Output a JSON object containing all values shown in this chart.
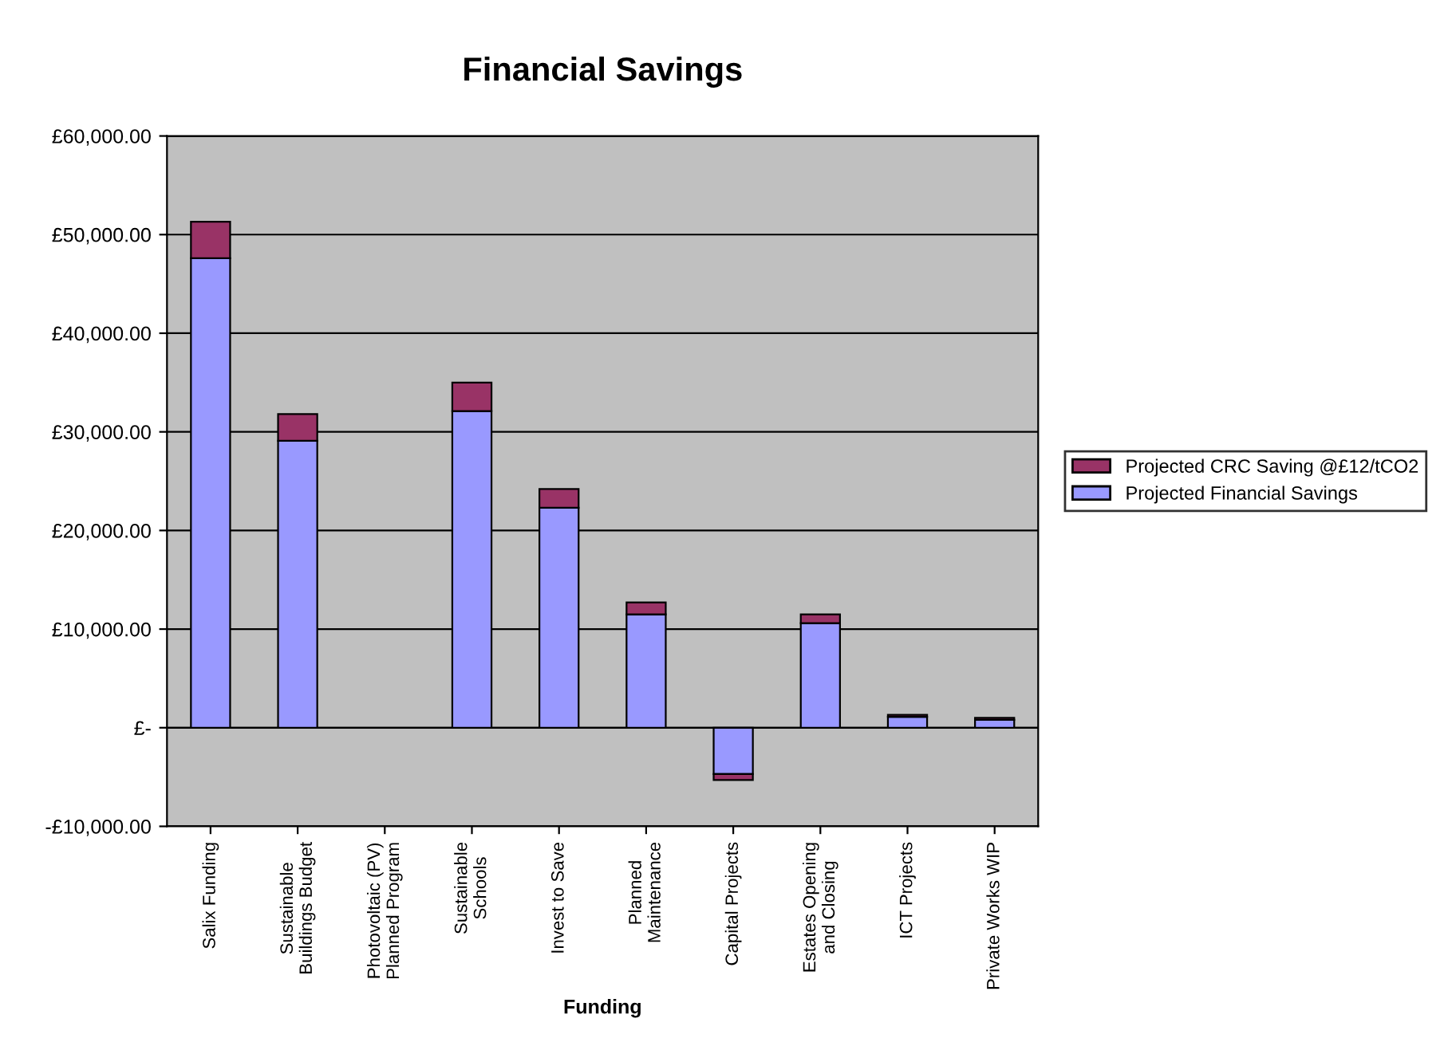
{
  "chart_data": {
    "type": "bar",
    "title": "Financial Savings",
    "xlabel": "Funding",
    "stacked": true,
    "categories": [
      "Salix Funding",
      "Sustainable\nBuildings Budget",
      "Photovoltaic (PV)\nPlanned Program",
      "Sustainable\nSchools",
      "Invest to Save",
      "Planned\nMaintenance",
      "Capital Projects",
      "Estates Opening\nand Closing",
      "ICT Projects",
      "Private Works WIP"
    ],
    "series": [
      {
        "name": "Projected Financial Savings",
        "color": "#9999ff",
        "values": [
          47600,
          29100,
          0,
          32100,
          22300,
          11500,
          -4700,
          10600,
          1100,
          800
        ]
      },
      {
        "name": "Projected CRC Saving @£12/tCO2",
        "color": "#993366",
        "values": [
          3700,
          2700,
          0,
          2900,
          1900,
          1200,
          -600,
          900,
          200,
          200
        ]
      }
    ],
    "ylim": [
      -10000,
      60000
    ],
    "yticks": [
      {
        "value": -10000,
        "label": "-£10,000.00"
      },
      {
        "value": 0,
        "label": "£-"
      },
      {
        "value": 10000,
        "label": "£10,000.00"
      },
      {
        "value": 20000,
        "label": "£20,000.00"
      },
      {
        "value": 30000,
        "label": "£30,000.00"
      },
      {
        "value": 40000,
        "label": "£40,000.00"
      },
      {
        "value": 50000,
        "label": "£50,000.00"
      },
      {
        "value": 60000,
        "label": "£60,000.00"
      }
    ],
    "grid": "y",
    "legend": "right"
  }
}
